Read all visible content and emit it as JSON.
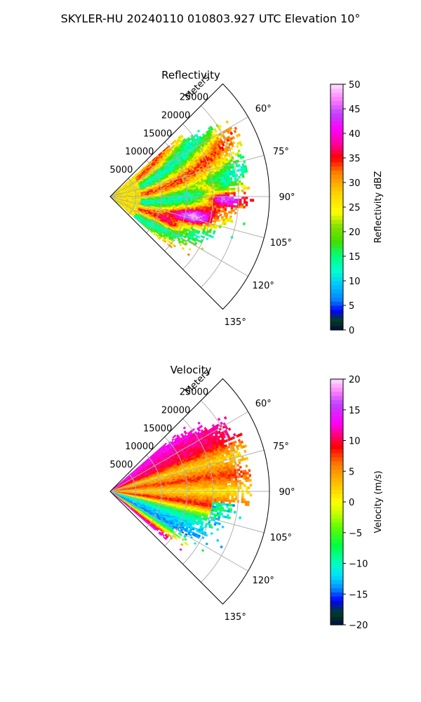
{
  "figure": {
    "title": "SKYLER-HU  20240110  010803.927 UTC Elevation 10°"
  },
  "chart_data": [
    {
      "type": "heatmap",
      "projection": "polar-sector",
      "title": "Reflectivity",
      "range_label": "Meters",
      "range_ticks": [
        5000,
        10000,
        15000,
        20000,
        25000
      ],
      "range_tick_labels": [
        "5000",
        "10000",
        "15000",
        "20000",
        "25000"
      ],
      "rlim": [
        0,
        31000
      ],
      "azimuth_range_deg": [
        45,
        135
      ],
      "azimuth_ticks_deg": [
        60,
        75,
        90,
        105,
        120,
        135
      ],
      "azimuth_tick_labels": [
        "60°",
        "75°",
        "90°",
        "105°",
        "120°",
        "135°"
      ],
      "grid": true,
      "colorbar": {
        "label": "Reflectivity dBZ",
        "range": [
          0,
          50
        ],
        "ticks": [
          0,
          5,
          10,
          15,
          20,
          25,
          30,
          35,
          40,
          45,
          50
        ],
        "tick_labels": [
          "0",
          "5",
          "10",
          "15",
          "20",
          "25",
          "30",
          "35",
          "40",
          "45",
          "50"
        ],
        "colormap": [
          [
            0,
            "#0a0a40"
          ],
          [
            2,
            "#004020"
          ],
          [
            4,
            "#0000ff"
          ],
          [
            6,
            "#0080ff"
          ],
          [
            9,
            "#00c0ff"
          ],
          [
            12,
            "#00ffd0"
          ],
          [
            15,
            "#00ff80"
          ],
          [
            18,
            "#40e000"
          ],
          [
            21,
            "#80e000"
          ],
          [
            24,
            "#ffff00"
          ],
          [
            28,
            "#ffd000"
          ],
          [
            32,
            "#ff8000"
          ],
          [
            35,
            "#ff0000"
          ],
          [
            38,
            "#ff00a0"
          ],
          [
            41,
            "#ff00ff"
          ],
          [
            44,
            "#c040ff"
          ],
          [
            47,
            "#ff80ff"
          ],
          [
            50,
            "#ffe0ff"
          ]
        ]
      }
    },
    {
      "type": "heatmap",
      "projection": "polar-sector",
      "title": "Velocity",
      "range_label": "Meters",
      "range_ticks": [
        5000,
        10000,
        15000,
        20000,
        25000
      ],
      "range_tick_labels": [
        "5000",
        "10000",
        "15000",
        "20000",
        "25000"
      ],
      "rlim": [
        0,
        31000
      ],
      "azimuth_range_deg": [
        45,
        135
      ],
      "azimuth_ticks_deg": [
        60,
        75,
        90,
        105,
        120,
        135
      ],
      "azimuth_tick_labels": [
        "60°",
        "75°",
        "90°",
        "105°",
        "120°",
        "135°"
      ],
      "grid": true,
      "colorbar": {
        "label": "Velocity (m/s)",
        "range": [
          -20,
          20
        ],
        "ticks": [
          -20,
          -15,
          -10,
          -5,
          0,
          5,
          10,
          15,
          20
        ],
        "tick_labels": [
          "−20",
          "−15",
          "−10",
          "−5",
          "0",
          "5",
          "10",
          "15",
          "20"
        ],
        "colormap": [
          [
            -20,
            "#001040"
          ],
          [
            -18,
            "#004020"
          ],
          [
            -16,
            "#0000ff"
          ],
          [
            -14,
            "#0090ff"
          ],
          [
            -12,
            "#00e0ff"
          ],
          [
            -10,
            "#00ffc0"
          ],
          [
            -7,
            "#00ff40"
          ],
          [
            -4,
            "#60ff00"
          ],
          [
            -2,
            "#c0ff00"
          ],
          [
            0,
            "#ffff00"
          ],
          [
            3,
            "#ffc000"
          ],
          [
            6,
            "#ff8000"
          ],
          [
            9,
            "#ff0000"
          ],
          [
            11,
            "#ff0080"
          ],
          [
            13,
            "#ff00ff"
          ],
          [
            16,
            "#c040ff"
          ],
          [
            18,
            "#ff80ff"
          ],
          [
            20,
            "#ffe0ff"
          ]
        ]
      }
    }
  ]
}
